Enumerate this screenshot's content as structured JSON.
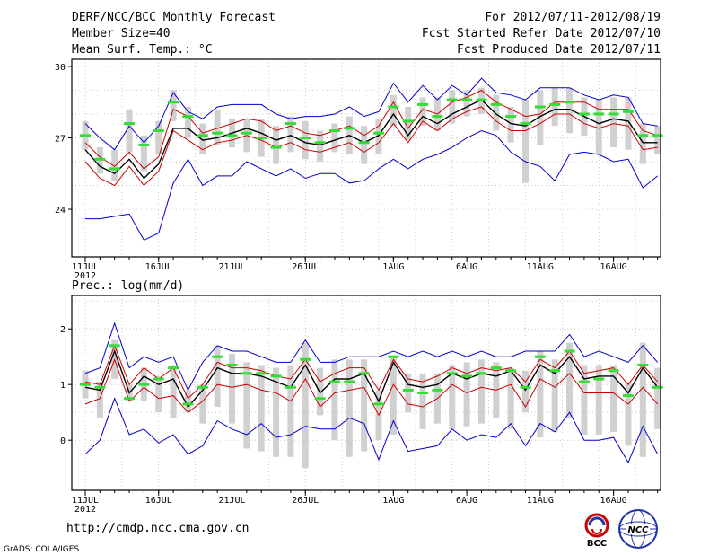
{
  "header": {
    "title": "DERF/NCC/BCC Monthly Forecast",
    "member_size": "Member Size=40",
    "variable": "Mean Surf. Temp.: °C",
    "forecast_period": "For 2012/07/11-2012/08/19",
    "started_refer_date": "Fcst Started Refer Date 2012/07/10",
    "produced_date": "Fcst Produced Date 2012/07/11"
  },
  "panel2_label": "Prec.: log(mm/d)",
  "footer": {
    "url": "http://cmdp.ncc.cma.gov.cn",
    "credit": "GrADS: COLA/IGES",
    "logo_bcc": "BCC",
    "logo_ncc": "NCC"
  },
  "colors": {
    "envelope": "#0000cc",
    "spread": "#cc0000",
    "mean": "#000000",
    "median_bar": "#33dd33",
    "box": "#d0d0d0"
  },
  "chart_data": [
    {
      "type": "line",
      "title": "Mean Surf. Temp.: °C",
      "x": [
        1,
        2,
        3,
        4,
        5,
        6,
        7,
        8,
        9,
        10,
        11,
        12,
        13,
        14,
        15,
        16,
        17,
        18,
        19,
        20,
        21,
        22,
        23,
        24,
        25,
        26,
        27,
        28,
        29,
        30,
        31,
        32,
        33,
        34,
        35,
        36,
        37,
        38,
        39,
        40
      ],
      "xtick_labels": [
        "11JUL",
        "16JUL",
        "21JUL",
        "26JUL",
        "1AUG",
        "6AUG",
        "11AUG",
        "16AUG"
      ],
      "xtick_positions": [
        1,
        6,
        11,
        16,
        22,
        27,
        32,
        37
      ],
      "year_label": "2012",
      "ylim": [
        22.0,
        30.3
      ],
      "yticks": [
        24,
        27,
        30
      ],
      "series": [
        {
          "name": "max",
          "values": [
            27.6,
            27.0,
            26.5,
            27.5,
            26.8,
            27.5,
            28.9,
            28.1,
            27.8,
            28.3,
            28.4,
            28.4,
            28.4,
            28.0,
            27.8,
            27.9,
            27.9,
            28.0,
            28.3,
            27.9,
            28.1,
            29.3,
            28.5,
            29.2,
            28.6,
            29.2,
            28.8,
            29.5,
            28.9,
            28.8,
            28.6,
            29.1,
            29.1,
            29.1,
            28.8,
            28.6,
            28.8,
            28.7,
            27.6,
            27.5
          ]
        },
        {
          "name": "spread_upper",
          "values": [
            26.8,
            26.2,
            25.8,
            26.4,
            25.7,
            26.2,
            28.2,
            27.9,
            27.2,
            27.4,
            27.6,
            27.8,
            27.7,
            27.3,
            27.5,
            27.2,
            27.1,
            27.3,
            27.5,
            27.1,
            27.5,
            28.5,
            27.4,
            28.2,
            28.0,
            28.5,
            28.7,
            29.0,
            28.5,
            28.2,
            27.9,
            28.0,
            28.5,
            28.5,
            28.5,
            28.2,
            28.2,
            28.2,
            27.3,
            27.1
          ]
        },
        {
          "name": "mean",
          "values": [
            26.5,
            25.8,
            25.5,
            26.1,
            25.3,
            25.9,
            27.4,
            27.4,
            26.9,
            27.0,
            27.2,
            27.4,
            27.2,
            26.9,
            27.1,
            26.8,
            26.7,
            26.9,
            27.1,
            26.8,
            27.1,
            28.0,
            27.1,
            27.9,
            27.6,
            28.0,
            28.3,
            28.6,
            28.0,
            27.6,
            27.5,
            27.9,
            28.2,
            28.2,
            27.9,
            27.6,
            27.8,
            27.7,
            26.8,
            26.8
          ]
        },
        {
          "name": "spread_lower",
          "values": [
            26.0,
            25.3,
            25.0,
            25.8,
            25.0,
            25.6,
            27.3,
            26.9,
            26.5,
            26.8,
            26.9,
            27.1,
            26.9,
            26.6,
            26.8,
            26.5,
            26.4,
            26.6,
            26.8,
            26.4,
            26.8,
            27.6,
            26.8,
            27.7,
            27.3,
            27.8,
            28.1,
            28.3,
            27.7,
            27.3,
            27.3,
            27.6,
            28.0,
            28.0,
            27.6,
            27.4,
            27.6,
            27.5,
            26.5,
            26.6
          ]
        },
        {
          "name": "min",
          "values": [
            23.6,
            23.6,
            23.7,
            23.8,
            22.7,
            23.0,
            25.1,
            26.1,
            25.0,
            25.4,
            25.4,
            26.0,
            25.7,
            25.4,
            25.7,
            25.3,
            25.5,
            25.5,
            25.1,
            25.2,
            25.7,
            26.1,
            25.7,
            26.1,
            26.3,
            26.6,
            27.0,
            27.3,
            27.1,
            26.4,
            26.0,
            25.8,
            25.2,
            26.3,
            26.4,
            26.3,
            26.0,
            26.1,
            24.9,
            25.4
          ]
        },
        {
          "name": "median",
          "values": [
            27.1,
            26.1,
            25.7,
            27.6,
            26.7,
            27.3,
            28.5,
            27.9,
            27.1,
            27.2,
            27.1,
            27.2,
            27.0,
            26.6,
            27.6,
            27.0,
            26.8,
            27.3,
            27.4,
            26.8,
            27.2,
            28.3,
            27.7,
            28.4,
            27.9,
            28.6,
            28.6,
            28.6,
            28.4,
            27.9,
            27.6,
            28.3,
            28.4,
            28.5,
            28.0,
            28.0,
            28.0,
            28.1,
            27.1,
            27.1
          ]
        },
        {
          "name": "box_top",
          "values": [
            27.7,
            26.6,
            26.5,
            28.2,
            27.1,
            27.7,
            29.0,
            28.3,
            27.6,
            28.2,
            27.8,
            27.8,
            27.8,
            27.5,
            27.9,
            27.7,
            27.3,
            27.6,
            27.9,
            27.5,
            27.8,
            28.8,
            28.3,
            28.7,
            28.7,
            29.0,
            29.0,
            29.1,
            28.8,
            28.3,
            28.6,
            29.0,
            29.1,
            29.1,
            28.7,
            28.6,
            28.7,
            28.7,
            27.6,
            27.5
          ]
        },
        {
          "name": "box_bottom",
          "values": [
            26.5,
            25.5,
            25.2,
            26.4,
            25.6,
            26.3,
            27.7,
            27.0,
            26.3,
            26.7,
            26.6,
            26.4,
            26.2,
            25.9,
            26.4,
            26.1,
            26.0,
            26.4,
            26.3,
            25.9,
            26.3,
            27.5,
            26.9,
            27.5,
            27.3,
            27.6,
            27.9,
            28.0,
            27.3,
            26.8,
            25.1,
            26.7,
            27.5,
            27.2,
            27.1,
            26.3,
            26.6,
            26.5,
            25.9,
            26.3
          ]
        }
      ]
    },
    {
      "type": "line",
      "title": "Prec.: log(mm/d)",
      "x": [
        1,
        2,
        3,
        4,
        5,
        6,
        7,
        8,
        9,
        10,
        11,
        12,
        13,
        14,
        15,
        16,
        17,
        18,
        19,
        20,
        21,
        22,
        23,
        24,
        25,
        26,
        27,
        28,
        29,
        30,
        31,
        32,
        33,
        34,
        35,
        36,
        37,
        38,
        39,
        40
      ],
      "xtick_labels": [
        "11JUL",
        "16JUL",
        "21JUL",
        "26JUL",
        "1AUG",
        "6AUG",
        "11AUG",
        "16AUG"
      ],
      "xtick_positions": [
        1,
        6,
        11,
        16,
        22,
        27,
        32,
        37
      ],
      "year_label": "2012",
      "ylim": [
        -0.9,
        2.6
      ],
      "yticks": [
        0,
        1,
        2
      ],
      "series": [
        {
          "name": "max",
          "values": [
            1.2,
            1.3,
            2.1,
            1.3,
            1.5,
            1.4,
            1.5,
            0.9,
            1.4,
            1.7,
            1.6,
            1.6,
            1.5,
            1.4,
            1.4,
            1.8,
            1.4,
            1.4,
            1.5,
            1.5,
            1.5,
            1.6,
            1.5,
            1.6,
            1.5,
            1.6,
            1.5,
            1.6,
            1.5,
            1.5,
            1.6,
            1.6,
            1.6,
            1.9,
            1.5,
            1.6,
            1.5,
            1.4,
            1.7,
            1.4
          ]
        },
        {
          "name": "spread_upper",
          "values": [
            1.05,
            1.0,
            1.7,
            1.0,
            1.3,
            1.1,
            1.3,
            0.75,
            1.0,
            1.4,
            1.3,
            1.3,
            1.25,
            1.15,
            1.1,
            1.45,
            1.05,
            1.2,
            1.3,
            1.3,
            0.9,
            1.45,
            1.1,
            1.05,
            1.15,
            1.3,
            1.2,
            1.3,
            1.25,
            1.3,
            1.05,
            1.45,
            1.3,
            1.6,
            1.2,
            1.25,
            1.3,
            1.0,
            1.35,
            1.05
          ]
        },
        {
          "name": "mean",
          "values": [
            0.95,
            0.9,
            1.6,
            0.85,
            1.15,
            1.0,
            1.1,
            0.6,
            0.9,
            1.3,
            1.2,
            1.2,
            1.15,
            1.05,
            0.95,
            1.35,
            0.85,
            1.1,
            1.1,
            1.2,
            0.7,
            1.4,
            1.0,
            0.95,
            1.0,
            1.2,
            1.1,
            1.2,
            1.15,
            1.25,
            0.9,
            1.35,
            1.2,
            1.5,
            1.1,
            1.15,
            1.15,
            0.85,
            1.3,
            0.95
          ]
        },
        {
          "name": "spread_lower",
          "values": [
            0.65,
            0.75,
            1.45,
            0.7,
            0.95,
            0.75,
            0.8,
            0.5,
            0.7,
            1.0,
            0.95,
            1.0,
            0.9,
            0.85,
            0.7,
            1.1,
            0.6,
            0.85,
            0.9,
            0.95,
            0.45,
            1.0,
            0.65,
            0.6,
            0.75,
            1.0,
            0.85,
            0.95,
            0.9,
            1.0,
            0.6,
            1.1,
            0.95,
            1.2,
            0.85,
            0.85,
            0.85,
            0.65,
            0.95,
            0.65
          ]
        },
        {
          "name": "min",
          "values": [
            -0.25,
            0.0,
            0.75,
            0.1,
            0.2,
            -0.05,
            0.1,
            -0.25,
            -0.1,
            0.35,
            0.2,
            0.1,
            0.3,
            0.05,
            0.1,
            0.25,
            0.2,
            0.2,
            0.4,
            0.3,
            -0.35,
            0.35,
            -0.2,
            -0.15,
            -0.1,
            0.2,
            0.0,
            0.1,
            0.05,
            0.3,
            -0.1,
            0.3,
            0.15,
            0.5,
            0.0,
            0.0,
            0.05,
            -0.4,
            0.25,
            -0.25
          ]
        },
        {
          "name": "median",
          "values": [
            1.0,
            0.95,
            1.7,
            0.75,
            1.0,
            1.1,
            1.3,
            0.65,
            0.95,
            1.5,
            1.35,
            1.2,
            1.2,
            1.15,
            0.95,
            1.45,
            0.75,
            1.05,
            1.05,
            1.2,
            0.65,
            1.5,
            0.9,
            0.85,
            0.9,
            1.2,
            1.15,
            1.2,
            1.3,
            1.25,
            0.95,
            1.5,
            1.25,
            1.6,
            1.05,
            1.1,
            1.25,
            0.8,
            1.35,
            0.95
          ]
        },
        {
          "name": "box_top",
          "values": [
            1.25,
            1.05,
            1.8,
            1.0,
            1.3,
            1.15,
            1.35,
            0.9,
            1.0,
            1.7,
            1.55,
            1.4,
            1.35,
            1.3,
            1.35,
            1.75,
            1.3,
            1.45,
            1.45,
            1.45,
            0.9,
            1.5,
            1.2,
            1.2,
            1.2,
            1.35,
            1.4,
            1.45,
            1.4,
            1.3,
            1.25,
            1.6,
            1.45,
            1.75,
            1.35,
            1.35,
            1.35,
            1.05,
            1.75,
            1.3
          ]
        },
        {
          "name": "box_bottom",
          "values": [
            0.75,
            0.4,
            1.1,
            0.7,
            0.7,
            0.5,
            0.4,
            0.5,
            0.3,
            0.6,
            0.3,
            -0.15,
            -0.2,
            -0.3,
            -0.3,
            -0.5,
            0.45,
            0.0,
            -0.3,
            -0.2,
            0.0,
            0.1,
            0.5,
            0.2,
            0.3,
            0.2,
            0.25,
            0.3,
            0.4,
            0.2,
            0.5,
            0.05,
            0.15,
            0.4,
            0.1,
            0.1,
            0.15,
            -0.1,
            -0.3,
            0.2
          ]
        }
      ]
    }
  ]
}
